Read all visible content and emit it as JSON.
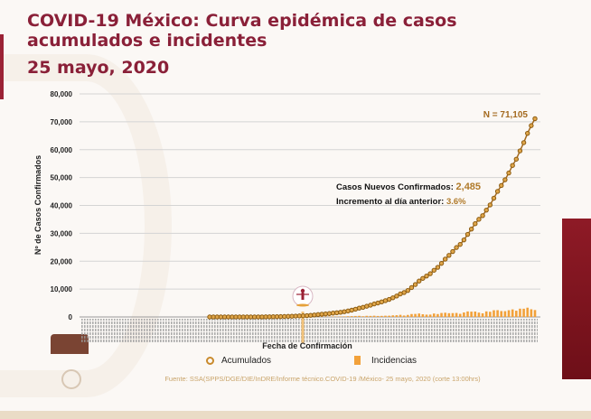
{
  "slide": {
    "title": "COVID-19 México: Curva epidémica de casos acumulados e incidentes",
    "date": "25 mayo, 2020",
    "source": "Fuente: SSA(SPPS/DGE/DIE/InDRE/Informe técnico.COVID-19 /México- 25 mayo, 2020 (corte 13:00hrs)"
  },
  "colors": {
    "title": "#8a2038",
    "accumulated": "#a46a1f",
    "incidence": "#f2a13a",
    "panel": "#8e1a26"
  },
  "chart_data": {
    "type": "line",
    "xlabel": "Fecha de Confirmación",
    "ylabel": "Nº de Casos Confirmados",
    "ylim": [
      0,
      80000
    ],
    "yticks": [
      "0",
      "10,000",
      "20,000",
      "30,000",
      "40,000",
      "50,000",
      "60,000",
      "70,000",
      "80,000"
    ],
    "grid": true,
    "legend_position": "bottom",
    "annotations": {
      "total": "N = 71,105",
      "new_label": "Casos Nuevos Confirmados:",
      "new_value": "2,485",
      "increase_label": "Incremento al día anterior:",
      "increase_value": "3.6%"
    },
    "series": [
      {
        "name": "Acumulados",
        "type": "line-markers",
        "values": [
          1,
          4,
          5,
          5,
          5,
          5,
          5,
          6,
          7,
          7,
          7,
          7,
          8,
          12,
          26,
          41,
          53,
          82,
          93,
          118,
          164,
          203,
          251,
          316,
          367,
          405,
          475,
          585,
          717,
          848,
          993,
          1094,
          1215,
          1378,
          1510,
          1688,
          1890,
          2143,
          2439,
          2785,
          3181,
          3441,
          3844,
          4219,
          4661,
          5014,
          5399,
          5847,
          6297,
          6875,
          7497,
          8261,
          8772,
          9501,
          10544,
          11633,
          12872,
          13842,
          14677,
          15529,
          16752,
          17799,
          19224,
          20739,
          22088,
          23471,
          24905,
          26025,
          27634,
          29616,
          31522,
          33460,
          35022,
          36327,
          38324,
          40186,
          42595,
          45032,
          47144,
          49219,
          51633,
          54346,
          56594,
          59567,
          62527,
          65856,
          68620,
          71105
        ]
      },
      {
        "name": "Incidencias",
        "type": "bar",
        "values": [
          1,
          3,
          1,
          0,
          0,
          0,
          0,
          1,
          1,
          0,
          0,
          0,
          1,
          4,
          14,
          15,
          12,
          29,
          11,
          25,
          46,
          39,
          48,
          65,
          51,
          38,
          70,
          110,
          132,
          131,
          145,
          101,
          121,
          163,
          132,
          178,
          202,
          253,
          296,
          346,
          396,
          260,
          403,
          375,
          442,
          353,
          385,
          448,
          450,
          578,
          622,
          764,
          511,
          729,
          1043,
          1089,
          1239,
          970,
          835,
          852,
          1223,
          1047,
          1425,
          1515,
          1349,
          1383,
          1434,
          1120,
          1609,
          1982,
          1906,
          1938,
          1562,
          1305,
          1997,
          1862,
          2409,
          2437,
          2112,
          2075,
          2414,
          2713,
          2248,
          2973,
          2960,
          3329,
          2764,
          2485
        ]
      }
    ]
  }
}
